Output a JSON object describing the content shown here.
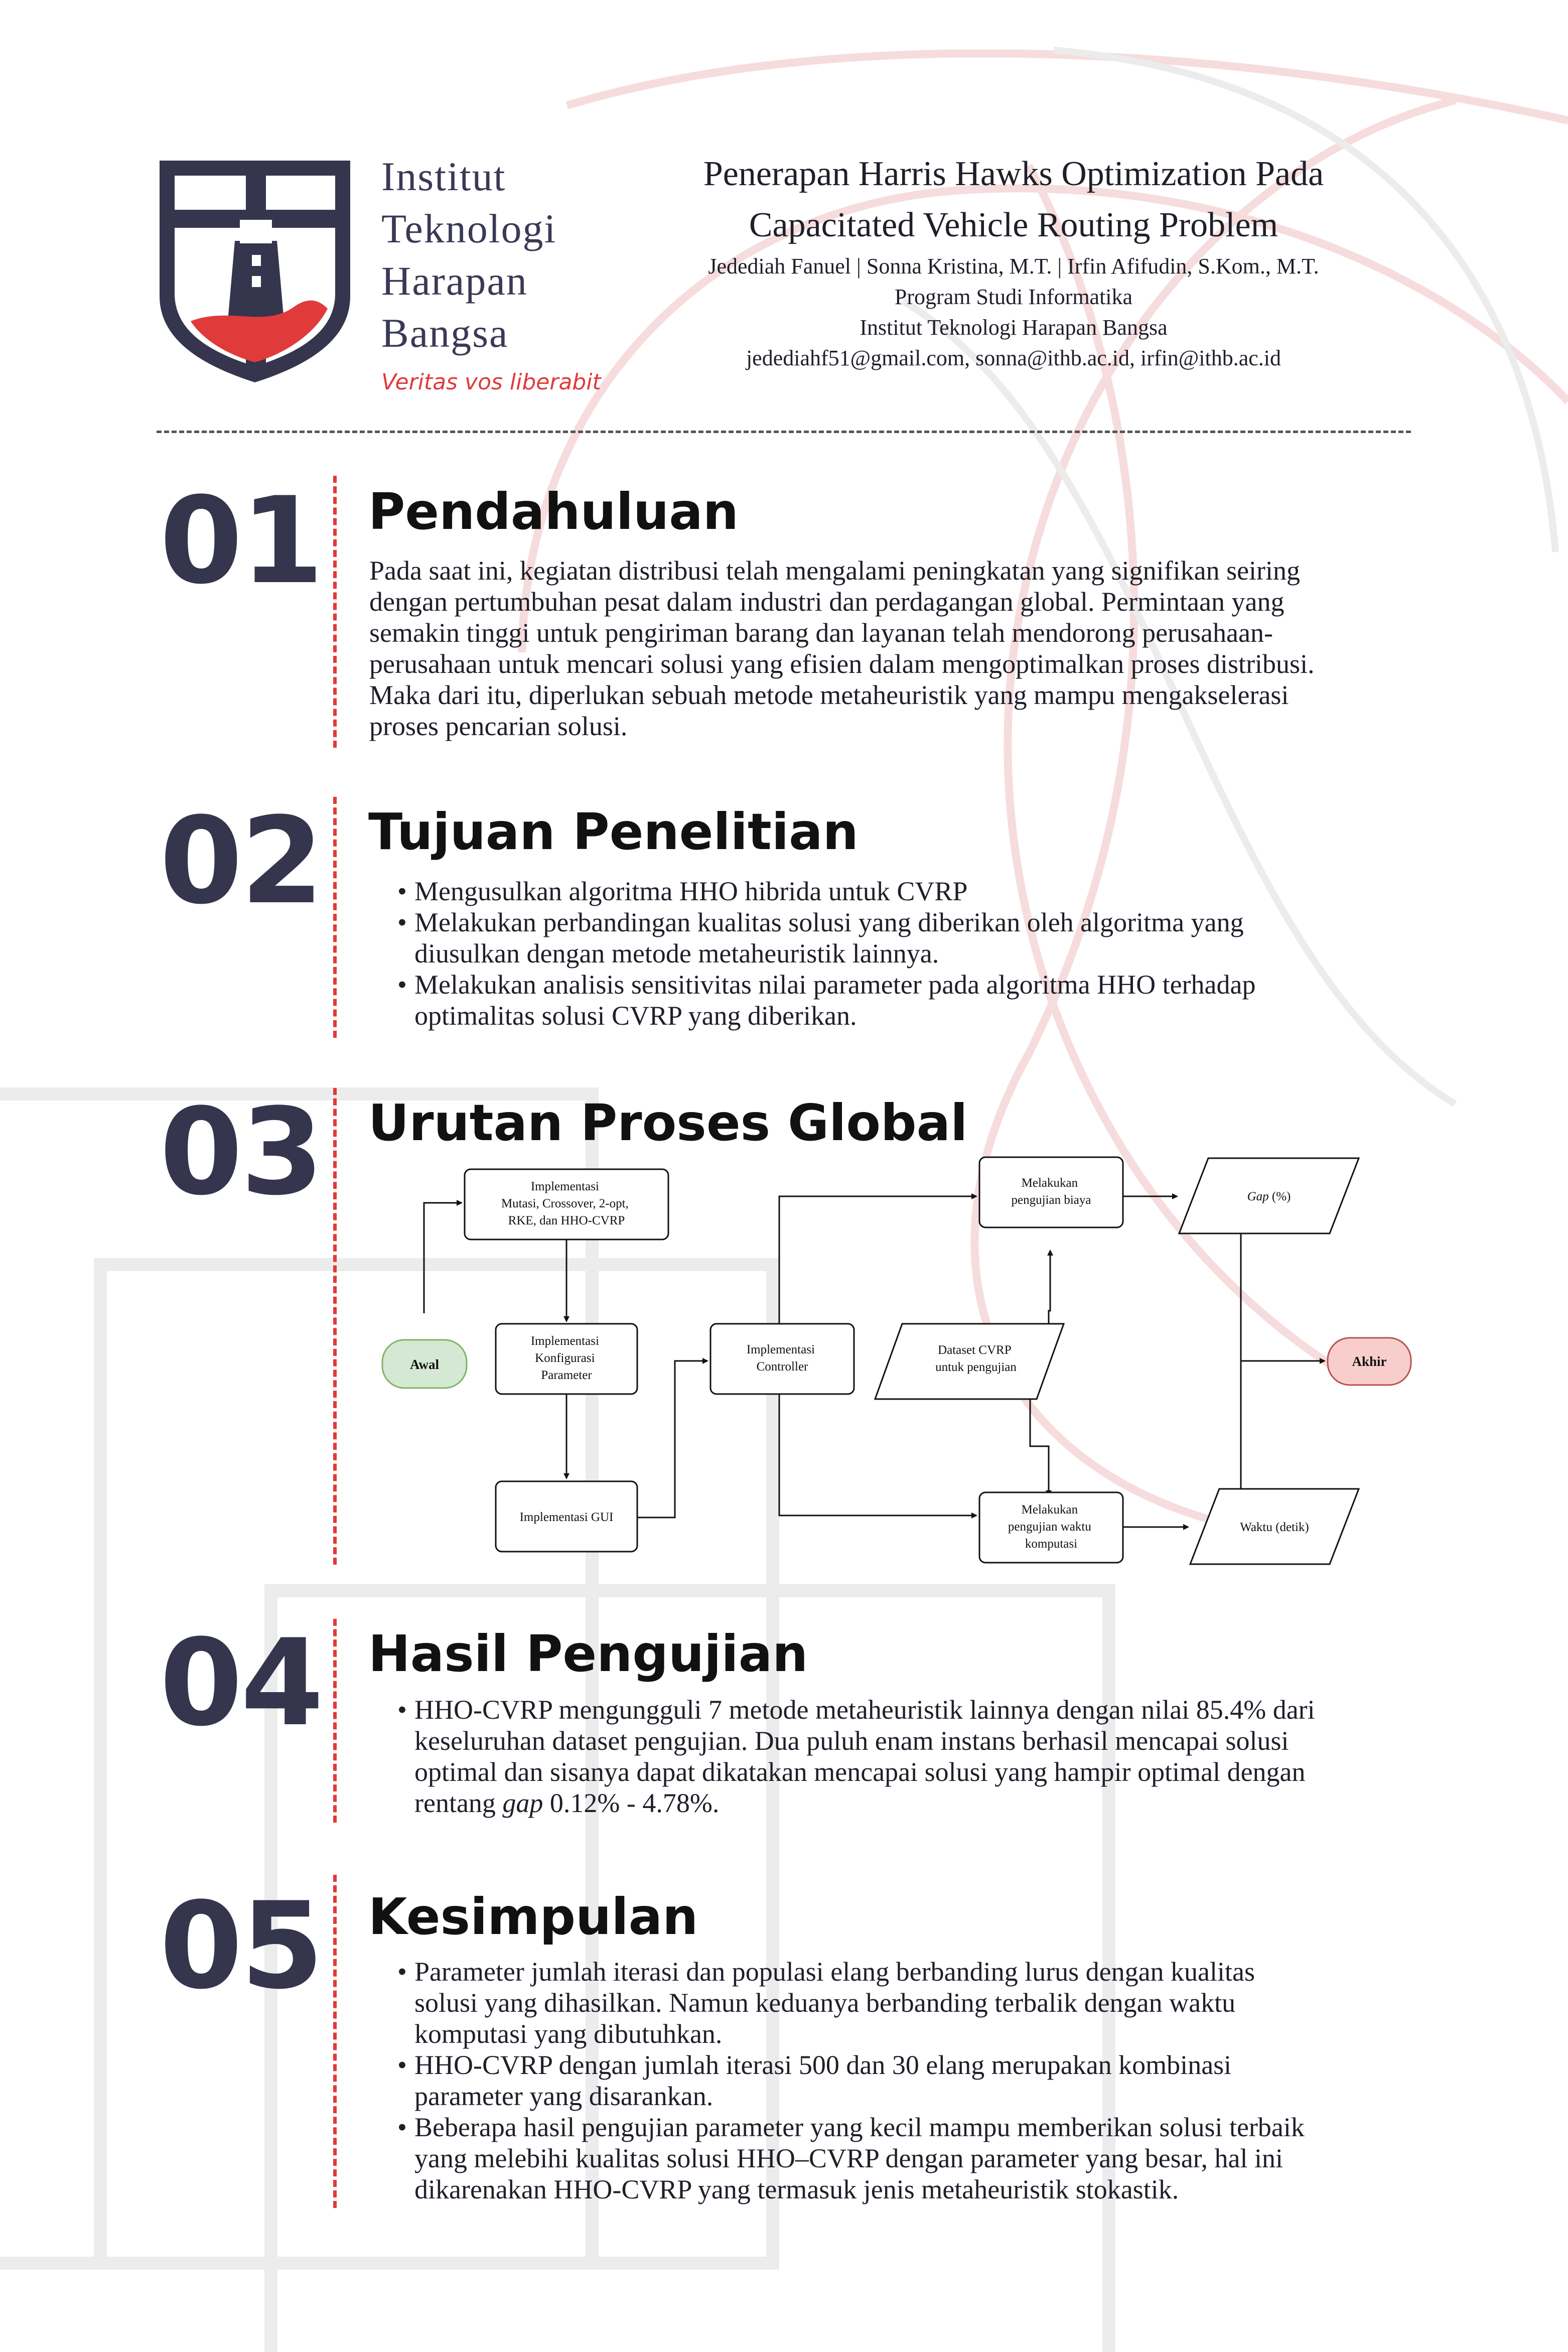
{
  "header": {
    "institution_lines": [
      "Institut",
      "Teknologi",
      "Harapan",
      "Bangsa"
    ],
    "motto": "Veritas vos liberabit",
    "title_lines": [
      "Penerapan Harris Hawks Optimization Pada",
      "Capacitated Vehicle Routing Problem"
    ],
    "authors": "Jedediah Fanuel | Sonna Kristina, M.T. | Irfin Afifudin, S.Kom., M.T.",
    "program": "Program Studi Informatika",
    "institute": "Institut Teknologi Harapan Bangsa",
    "emails": "jedediahf51@gmail.com, sonna@ithb.ac.id, irfin@ithb.ac.id"
  },
  "sections": [
    {
      "number": "01",
      "title": "Pendahuluan",
      "paragraph_lines": [
        "Pada saat ini, kegiatan distribusi telah mengalami peningkatan yang signifikan seiring",
        "dengan pertumbuhan pesat dalam industri dan perdagangan global. Permintaan yang",
        "semakin tinggi untuk pengiriman barang dan layanan telah mendorong perusahaan-",
        "perusahaan untuk mencari solusi yang efisien dalam mengoptimalkan proses distribusi.",
        "Maka dari itu, diperlukan sebuah metode metaheuristik yang mampu mengakselerasi",
        "proses pencarian solusi."
      ]
    },
    {
      "number": "02",
      "title": "Tujuan Penelitian",
      "bullets": [
        [
          "Mengusulkan algoritma HHO hibrida untuk CVRP"
        ],
        [
          "Melakukan perbandingan kualitas solusi yang diberikan oleh algoritma yang",
          "diusulkan dengan metode metaheuristik lainnya."
        ],
        [
          "Melakukan analisis sensitivitas nilai parameter pada algoritma HHO terhadap",
          "optimalitas solusi CVRP yang diberikan."
        ]
      ]
    },
    {
      "number": "03",
      "title": "Urutan Proses Global"
    },
    {
      "number": "04",
      "title": "Hasil Pengujian",
      "bullet_lines": [
        "HHO-CVRP mengungguli 7 metode metaheuristik lainnya dengan nilai 85.4% dari",
        "keseluruhan dataset pengujian. Dua puluh enam instans berhasil mencapai  solusi",
        "optimal dan sisanya dapat dikatakan mencapai solusi yang hampir optimal dengan",
        "rentang"
      ],
      "italic_word": "gap",
      "range_text": "0.12% - 4.78%."
    },
    {
      "number": "05",
      "title": "Kesimpulan",
      "bullets": [
        [
          "Parameter jumlah iterasi dan populasi elang berbanding lurus dengan kualitas",
          "solusi yang dihasilkan. Namun keduanya berbanding terbalik dengan waktu",
          "komputasi yang dibutuhkan."
        ],
        [
          "HHO-CVRP dengan jumlah iterasi 500 dan 30 elang merupakan kombinasi",
          "parameter yang disarankan."
        ],
        [
          "Beberapa hasil pengujian parameter yang kecil mampu memberikan solusi terbaik",
          "yang melebihi kualitas solusi HHO–CVRP dengan parameter yang besar, hal ini",
          "dikarenakan HHO-CVRP yang termasuk jenis metaheuristik stokastik."
        ]
      ]
    }
  ],
  "flowchart": {
    "start": "Awal",
    "end": "Akhir",
    "impl_ops": [
      "Implementasi",
      "Mutasi, Crossover, 2-opt,",
      "RKE, dan HHO-CVRP"
    ],
    "impl_config": [
      "Implementasi",
      "Konfigurasi",
      "Parameter"
    ],
    "impl_gui": "Implementasi GUI",
    "impl_controller": [
      "Implementasi",
      "Controller"
    ],
    "dataset": [
      "Dataset CVRP",
      "untuk pengujian"
    ],
    "test_cost": [
      "Melakukan",
      "pengujian biaya"
    ],
    "test_time": [
      "Melakukan",
      "pengujian waktu",
      "komputasi"
    ],
    "gap_italic": "Gap",
    "gap_rest": " (%)",
    "time_output": "Waktu (detik)",
    "colors": {
      "start_fill": "#d5e8d4",
      "start_stroke": "#82b366",
      "end_fill": "#f8cecc",
      "end_stroke": "#b85450"
    }
  },
  "colors": {
    "accent_red": "#e03a3a",
    "navy": "#35354e"
  }
}
